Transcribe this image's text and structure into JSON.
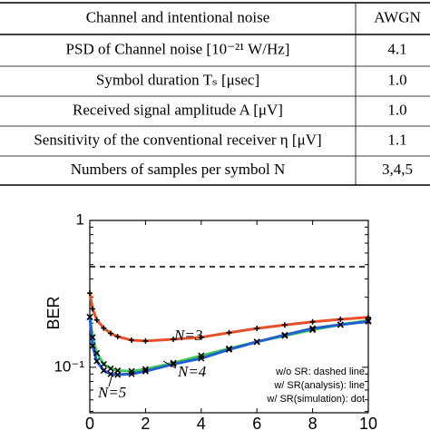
{
  "table": {
    "header": [
      "Channel and intentional noise",
      "AWGN"
    ],
    "rows": [
      [
        "PSD of Channel noise [10⁻²¹ W/Hz]",
        "4.1"
      ],
      [
        "Symbol duration Tₛ [μsec]",
        "1.0"
      ],
      [
        "Received signal amplitude A [μV]",
        "1.0"
      ],
      [
        "Sensitivity of the conventional receiver η [μV]",
        "1.1"
      ],
      [
        "Numbers of samples per symbol N",
        "3,4,5"
      ]
    ]
  },
  "chart_data": {
    "type": "line",
    "ylabel": "BER",
    "log_y": true,
    "x": [
      0,
      0.1,
      0.25,
      0.5,
      0.75,
      1,
      1.5,
      2,
      3,
      4,
      5,
      6,
      7,
      8,
      9,
      10
    ],
    "xlim": [
      0,
      10
    ],
    "xticks": [
      0,
      2,
      4,
      6,
      8,
      10
    ],
    "ylim": [
      0.049,
      1
    ],
    "yticks": [
      1,
      {
        "value": 0.1,
        "label": "10⁻¹"
      }
    ],
    "yminor_ticks": [
      0.05,
      0.06,
      0.07,
      0.08,
      0.09,
      0.2,
      0.3,
      0.4,
      0.5,
      0.6,
      0.7,
      0.8,
      0.9
    ],
    "series": [
      {
        "color": "#000000",
        "style": "dashed",
        "values": [
          0.484,
          0.484,
          0.484,
          0.484,
          0.484,
          0.484,
          0.484,
          0.484,
          0.484,
          0.484,
          0.484,
          0.484,
          0.484,
          0.484,
          0.484,
          0.484
        ]
      },
      {
        "color": "#e8502a",
        "style": "line",
        "values": [
          0.32,
          0.25,
          0.21,
          0.185,
          0.17,
          0.162,
          0.153,
          0.151,
          0.155,
          0.16,
          0.172,
          0.184,
          0.194,
          0.204,
          0.212,
          0.219
        ]
      },
      {
        "color": "#3cc85a",
        "style": "line",
        "values": [
          0.22,
          0.16,
          0.125,
          0.105,
          0.098,
          0.095,
          0.094,
          0.097,
          0.107,
          0.12,
          0.134,
          0.149,
          0.164,
          0.18,
          0.195,
          0.208
        ]
      },
      {
        "color": "#1f5fd0",
        "style": "line",
        "values": [
          0.22,
          0.14,
          0.11,
          0.095,
          0.09,
          0.089,
          0.09,
          0.094,
          0.105,
          0.115,
          0.132,
          0.149,
          0.166,
          0.184,
          0.195,
          0.205
        ]
      },
      {
        "color": "#000000",
        "style": "plus",
        "values": [
          0.32,
          0.25,
          0.21,
          0.185,
          0.17,
          0.162,
          0.153,
          0.151,
          0.155,
          0.16,
          0.172,
          0.184,
          0.194,
          0.204,
          0.212,
          0.219
        ]
      },
      {
        "color": "#000000",
        "style": "cross",
        "values": [
          0.22,
          0.16,
          0.125,
          0.105,
          0.098,
          0.095,
          0.094,
          0.097,
          0.107,
          0.12,
          0.134,
          0.149,
          0.164,
          0.18,
          0.195,
          0.208
        ]
      },
      {
        "color": "#000000",
        "style": "cross",
        "values": [
          0.22,
          0.14,
          0.11,
          0.095,
          0.09,
          0.089,
          0.09,
          0.094,
          0.105,
          0.115,
          0.132,
          0.149,
          0.166,
          0.184,
          0.195,
          0.205
        ]
      }
    ],
    "annotations": [
      "N=3",
      "N=4",
      "N=5",
      "w/o SR: dashed line",
      "w/ SR(analysis): line",
      "w/ SR(simulation): dot"
    ]
  }
}
